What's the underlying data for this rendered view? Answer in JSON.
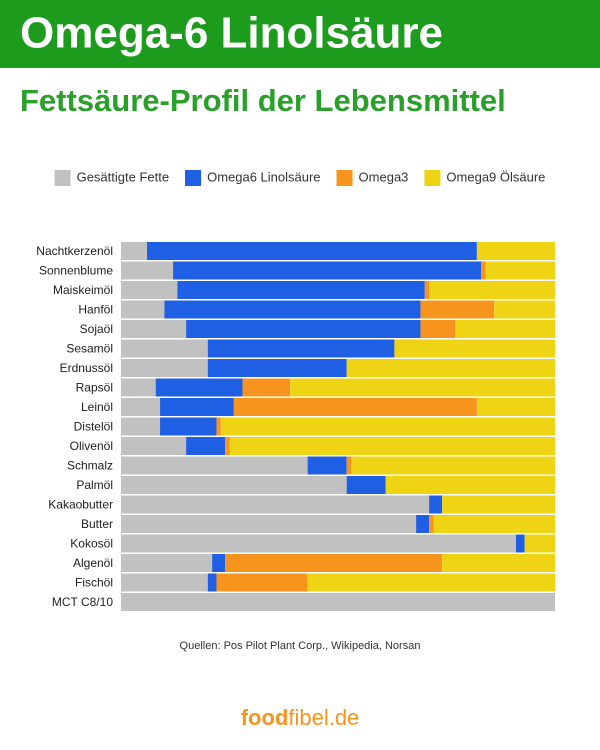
{
  "chart_data": {
    "type": "bar",
    "orientation": "horizontal",
    "stacked": true,
    "title": "Omega-6 Linolsäure",
    "subtitle": "Fettsäure-Profil der Lebensmittel",
    "categories": [
      "Nachtkerzenöl",
      "Sonnenblume",
      "Maiskeimöl",
      "Hanföl",
      "Sojaöl",
      "Sesamöl",
      "Erdnussöl",
      "Rapsöl",
      "Leinöl",
      "Distelöl",
      "Olivenöl",
      "Schmalz",
      "Palmöl",
      "Kakaobutter",
      "Butter",
      "Kokosöl",
      "Algenöl",
      "Fischöl",
      "MCT C8/10"
    ],
    "series": [
      {
        "name": "Gesättigte Fette",
        "color": "#c1c1c1",
        "values": [
          6,
          12,
          13,
          10,
          15,
          20,
          20,
          8,
          9,
          9,
          15,
          43,
          52,
          71,
          68,
          91,
          21,
          20,
          100
        ]
      },
      {
        "name": "Omega6 Linolsäure",
        "color": "#1f5fe3",
        "values": [
          76,
          71,
          57,
          59,
          54,
          43,
          32,
          20,
          17,
          13,
          9,
          9,
          9,
          3,
          3,
          2,
          3,
          2,
          0
        ]
      },
      {
        "name": "Omega3",
        "color": "#f7941d",
        "values": [
          0,
          1,
          1,
          17,
          8,
          0,
          0,
          11,
          56,
          1,
          1,
          1,
          0,
          0,
          1,
          0,
          50,
          21,
          0
        ]
      },
      {
        "name": "Omega9 Ölsäure",
        "color": "#efd416",
        "values": [
          18,
          16,
          29,
          14,
          23,
          37,
          48,
          61,
          18,
          77,
          75,
          47,
          39,
          26,
          28,
          7,
          26,
          57,
          0
        ]
      }
    ],
    "xlim": [
      0,
      100
    ],
    "legend": "top",
    "source": "Quellen: Pos Pilot Plant Corp., Wikipedia, Norsan"
  },
  "logo": {
    "bold": "food",
    "rest": "fibel.de"
  }
}
